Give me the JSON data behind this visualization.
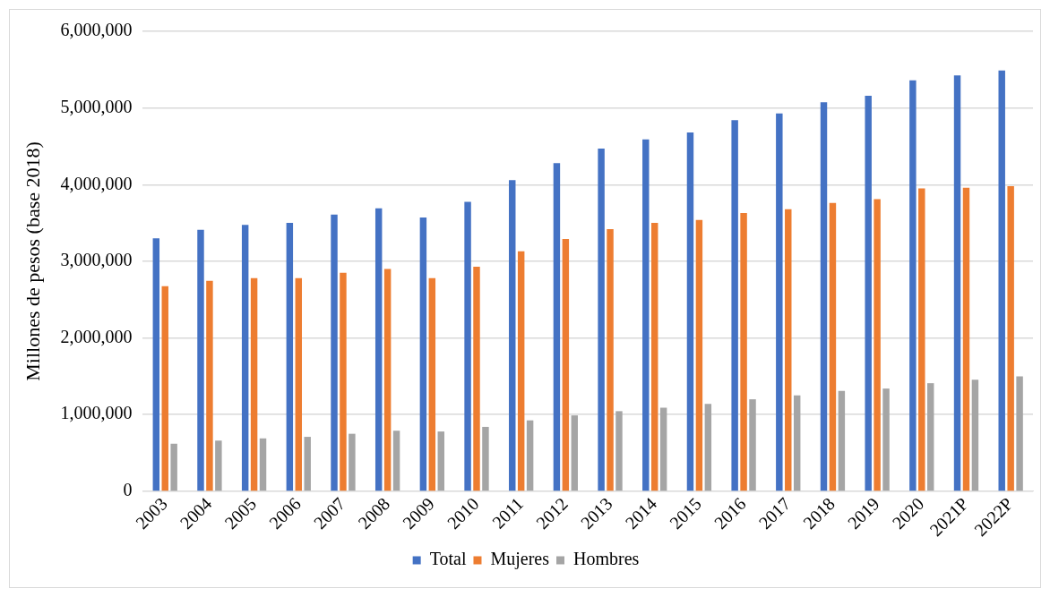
{
  "chart_data": {
    "type": "bar",
    "ylabel": "Millones de pesos (base 2018)",
    "categories": [
      "2003",
      "2004",
      "2005",
      "2006",
      "2007",
      "2008",
      "2009",
      "2010",
      "2011",
      "2012",
      "2013",
      "2014",
      "2015",
      "2016",
      "2017",
      "2018",
      "2019",
      "2020",
      "2021P",
      "2022P"
    ],
    "series": [
      {
        "name": "Total",
        "color": "#4472c4",
        "values": [
          3300000,
          3410000,
          3475000,
          3500000,
          3610000,
          3690000,
          3570000,
          3775000,
          4060000,
          4280000,
          4470000,
          4590000,
          4680000,
          4840000,
          4930000,
          5075000,
          5160000,
          5360000,
          5425000,
          5490000
        ]
      },
      {
        "name": "Mujeres",
        "color": "#ed7d31",
        "values": [
          2675000,
          2745000,
          2780000,
          2780000,
          2850000,
          2900000,
          2780000,
          2930000,
          3130000,
          3290000,
          3420000,
          3500000,
          3540000,
          3630000,
          3680000,
          3760000,
          3810000,
          3950000,
          3960000,
          3980000
        ]
      },
      {
        "name": "Hombres",
        "color": "#a5a5a5",
        "values": [
          620000,
          660000,
          690000,
          710000,
          750000,
          790000,
          780000,
          840000,
          925000,
          990000,
          1045000,
          1090000,
          1140000,
          1200000,
          1250000,
          1310000,
          1340000,
          1410000,
          1455000,
          1500000
        ]
      }
    ],
    "ylim": [
      0,
      6000000
    ],
    "yticks": [
      {
        "value": 0,
        "label": "0"
      },
      {
        "value": 1000000,
        "label": "1,000,000"
      },
      {
        "value": 2000000,
        "label": "2,000,000"
      },
      {
        "value": 3000000,
        "label": "3,000,000"
      },
      {
        "value": 4000000,
        "label": "4,000,000"
      },
      {
        "value": 5000000,
        "label": "5,000,000"
      },
      {
        "value": 6000000,
        "label": "6,000,000"
      }
    ],
    "grid": "y",
    "legend": "bottom"
  }
}
